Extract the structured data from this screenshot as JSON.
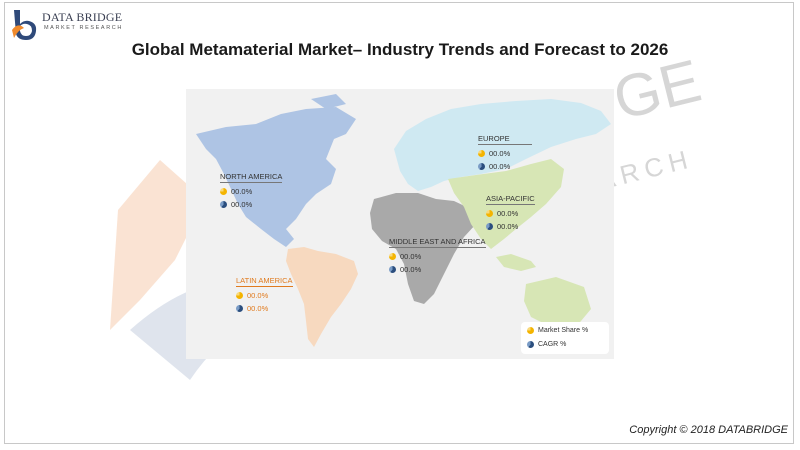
{
  "logo": {
    "line1": "DATA BRIDGE",
    "line2": "MARKET RESEARCH"
  },
  "title": "Global Metamaterial Market– Industry Trends and Forecast to 2026",
  "watermark": {
    "letters_top": "GE",
    "letters_bottom": "ARCH"
  },
  "map": {
    "regions": [
      {
        "id": "north-america",
        "name": "NORTH AMERICA",
        "market_share": "00.0%",
        "cagr": "00.0%",
        "color": "#aec4e4"
      },
      {
        "id": "europe",
        "name": "EUROPE",
        "market_share": "00.0%",
        "cagr": "00.0%",
        "color": "#cfe9f2"
      },
      {
        "id": "asia-pacific",
        "name": "ASIA-PACIFIC",
        "market_share": "00.0%",
        "cagr": "00.0%",
        "color": "#d7e6b5"
      },
      {
        "id": "middle-east-africa",
        "name": "MIDDLE EAST AND AFRICA",
        "market_share": "00.0%",
        "cagr": "00.0%",
        "color": "#a9a9a9"
      },
      {
        "id": "latin-america",
        "name": "LATIN AMERICA",
        "market_share": "00.0%",
        "cagr": "00.0%",
        "color": "#f7d9bf",
        "label_color": "#e07b1f"
      }
    ],
    "legend": {
      "market_share_label": "Market Share %",
      "cagr_label": "CAGR %"
    }
  },
  "footer": {
    "copyright": "Copyright © 2018 DATABRIDGE"
  }
}
